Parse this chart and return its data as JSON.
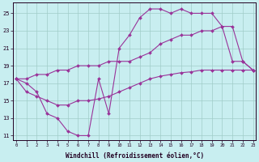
{
  "xlabel": "Windchill (Refroidissement éolien,°C)",
  "bg_color": "#c8eef0",
  "grid_color": "#a0ccc8",
  "line_color": "#993399",
  "series": [
    {
      "x": [
        0,
        1,
        2,
        3,
        4,
        5,
        6,
        7,
        8,
        9,
        10,
        11,
        12,
        13,
        14,
        15,
        16,
        17,
        18,
        19,
        20,
        21,
        22,
        23
      ],
      "y": [
        17.5,
        17.0,
        16.0,
        13.5,
        13.0,
        11.5,
        11.0,
        11.0,
        17.5,
        13.5,
        21.0,
        22.5,
        24.5,
        25.5,
        25.5,
        25.0,
        25.5,
        25.0,
        25.0,
        25.0,
        23.5,
        19.5,
        19.5,
        18.5
      ]
    },
    {
      "x": [
        0,
        1,
        2,
        3,
        4,
        5,
        6,
        7,
        8,
        9,
        10,
        11,
        12,
        13,
        14,
        15,
        16,
        17,
        18,
        19,
        20,
        21,
        22,
        23
      ],
      "y": [
        17.5,
        16.0,
        15.5,
        15.0,
        14.5,
        14.5,
        15.0,
        15.0,
        15.2,
        15.5,
        16.0,
        16.5,
        17.0,
        17.5,
        17.8,
        18.0,
        18.2,
        18.3,
        18.5,
        18.5,
        18.5,
        18.5,
        18.5,
        18.5
      ]
    },
    {
      "x": [
        0,
        1,
        2,
        3,
        4,
        5,
        6,
        7,
        8,
        9,
        10,
        11,
        12,
        13,
        14,
        15,
        16,
        17,
        18,
        19,
        20,
        21,
        22,
        23
      ],
      "y": [
        17.5,
        17.5,
        18.0,
        18.0,
        18.5,
        18.5,
        19.0,
        19.0,
        19.0,
        19.5,
        19.5,
        19.5,
        20.0,
        20.5,
        21.5,
        22.0,
        22.5,
        22.5,
        23.0,
        23.0,
        23.5,
        23.5,
        19.5,
        18.5
      ]
    }
  ],
  "xlim": [
    -0.3,
    23.3
  ],
  "ylim": [
    10.5,
    26.2
  ],
  "yticks": [
    11,
    13,
    15,
    17,
    19,
    21,
    23,
    25
  ],
  "xticks": [
    0,
    1,
    2,
    3,
    4,
    5,
    6,
    7,
    8,
    9,
    10,
    11,
    12,
    13,
    14,
    15,
    16,
    17,
    18,
    19,
    20,
    21,
    22,
    23
  ]
}
